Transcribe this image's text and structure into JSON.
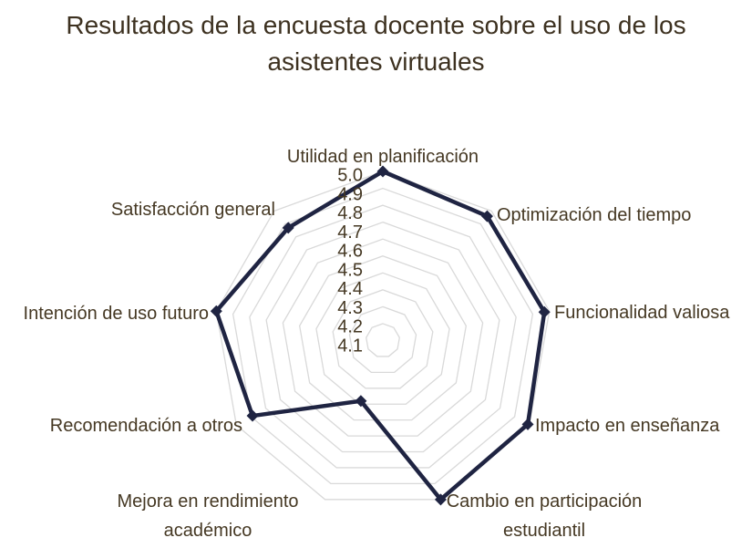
{
  "title": "Resultados de la encuesta docente sobre el uso de los asistentes virtuales",
  "chart_data": {
    "type": "radar",
    "categories": [
      "Utilidad en planificación",
      "Optimización del tiempo",
      "Funcionalidad valiosa",
      "Impacto en enseñanza",
      "Cambio en participación estudiantil",
      "Mejora en rendimiento académico",
      "Recomendación a otros",
      "Intención de uso futuro",
      "Satisfacción general"
    ],
    "values": [
      5.0,
      4.96,
      4.97,
      4.99,
      5.0,
      4.38,
      4.89,
      5.0,
      4.87
    ],
    "axis_min": 4.0,
    "axis_max": 5.0,
    "tick_step": 0.1,
    "tick_labels": [
      "5.0",
      "4.9",
      "4.8",
      "4.7",
      "4.6",
      "4.5",
      "4.4",
      "4.3",
      "4.2",
      "4.1"
    ],
    "grid": true,
    "grid_rings": 10,
    "legend": false,
    "colors": {
      "series_line": "#1f2442",
      "marker": "#1f2442",
      "gridline": "#d9d9d9",
      "label_text": "#453823",
      "title_text": "#3d3120",
      "background": "#ffffff"
    }
  }
}
